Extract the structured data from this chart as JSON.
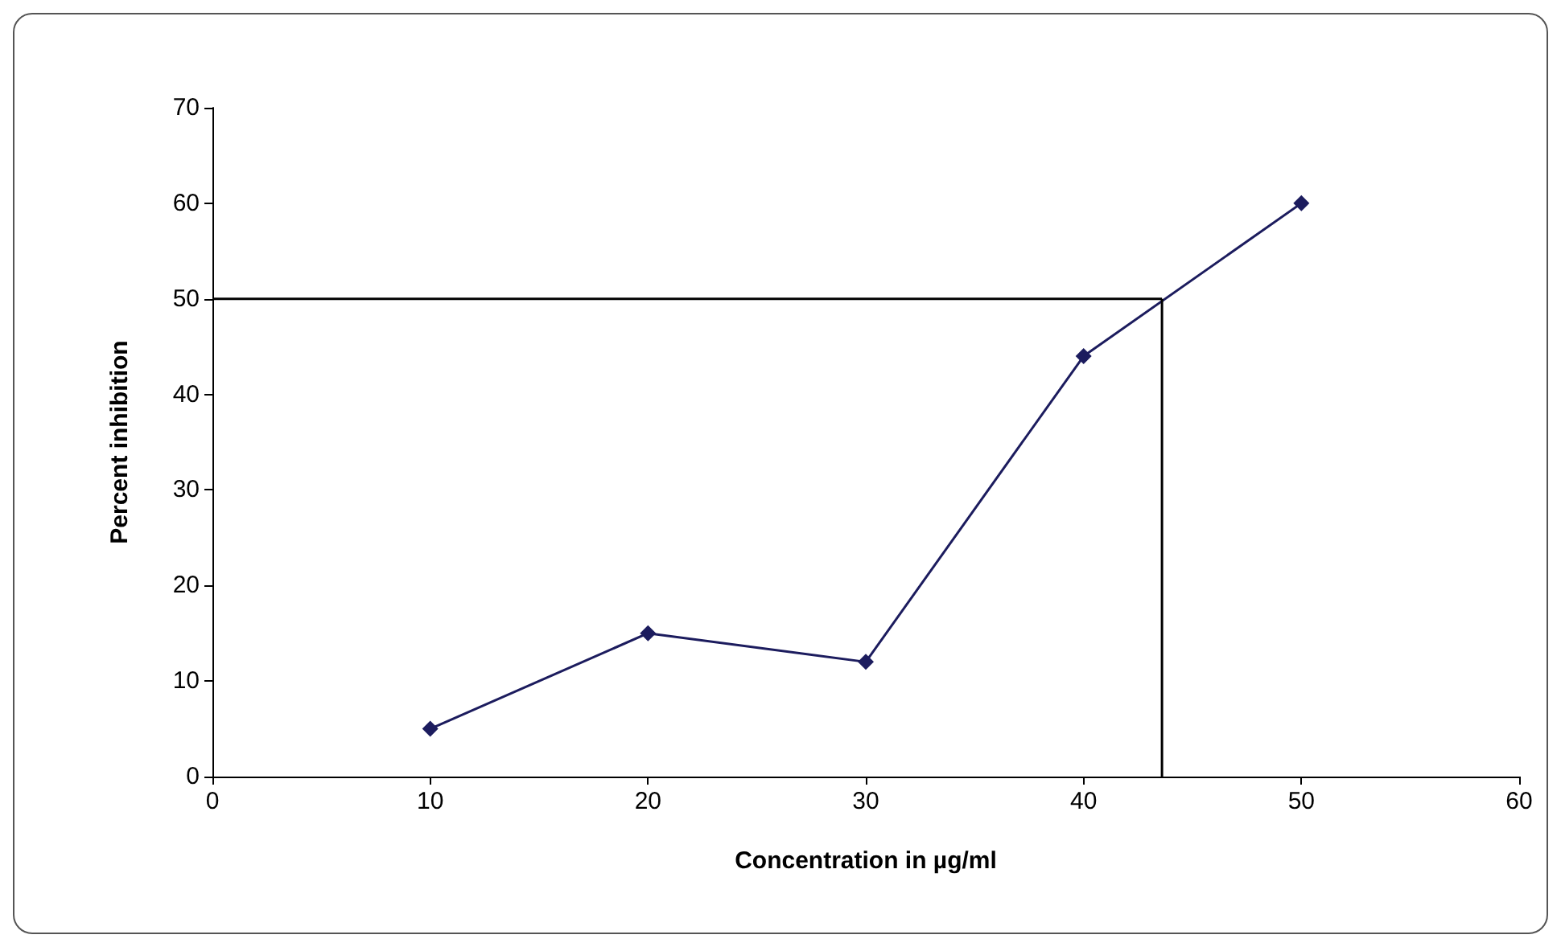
{
  "chart_data": {
    "type": "line",
    "xlabel": "Concentration in µg/ml",
    "ylabel": "Percent inhibition",
    "x": [
      10,
      20,
      30,
      40,
      50
    ],
    "series": [
      {
        "color": "#1c1c5e",
        "values": [
          5,
          15,
          12,
          44,
          60
        ]
      }
    ],
    "xlim": [
      0,
      60
    ],
    "xticks": [
      0,
      10,
      20,
      30,
      40,
      50,
      60
    ],
    "ylim": [
      0,
      70
    ],
    "yticks": [
      0,
      10,
      20,
      30,
      40,
      50,
      60,
      70
    ],
    "marker": "diamond",
    "line_style": "solid",
    "ref_lines": [
      {
        "axis": "y",
        "value": 50,
        "color": "#000000"
      },
      {
        "axis": "x",
        "value": 43.6,
        "color": "#000000"
      }
    ]
  }
}
